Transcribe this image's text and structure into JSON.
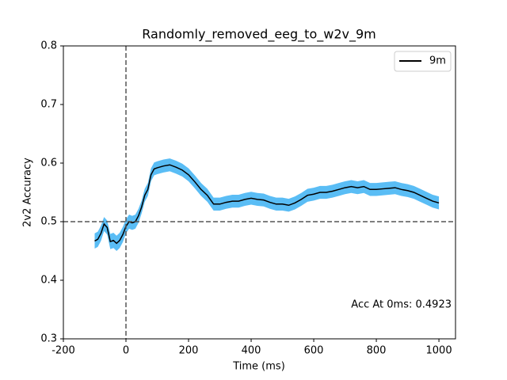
{
  "chart_data": {
    "type": "line",
    "title": "Randomly_removed_eeg_to_w2v_9m",
    "x_label": "Time (ms)",
    "y_label": "2v2 Accuracy",
    "x": [
      -100,
      -90,
      -80,
      -70,
      -60,
      -50,
      -40,
      -30,
      -20,
      -10,
      0,
      10,
      20,
      30,
      40,
      50,
      60,
      70,
      80,
      90,
      100,
      120,
      140,
      160,
      180,
      200,
      220,
      240,
      260,
      280,
      300,
      320,
      340,
      360,
      380,
      400,
      420,
      440,
      460,
      480,
      500,
      520,
      540,
      560,
      580,
      600,
      620,
      640,
      660,
      680,
      700,
      720,
      740,
      760,
      780,
      800,
      820,
      840,
      860,
      880,
      900,
      920,
      940,
      960,
      980,
      1000
    ],
    "series": [
      {
        "name": "9m",
        "color": "#000000",
        "band_color": "#5abdf5",
        "values": [
          0.467,
          0.47,
          0.48,
          0.496,
          0.49,
          0.466,
          0.468,
          0.463,
          0.468,
          0.478,
          0.492,
          0.5,
          0.498,
          0.5,
          0.51,
          0.525,
          0.545,
          0.555,
          0.58,
          0.59,
          0.592,
          0.595,
          0.597,
          0.593,
          0.588,
          0.58,
          0.568,
          0.555,
          0.545,
          0.53,
          0.53,
          0.533,
          0.535,
          0.535,
          0.538,
          0.54,
          0.538,
          0.537,
          0.533,
          0.53,
          0.53,
          0.528,
          0.532,
          0.538,
          0.545,
          0.547,
          0.55,
          0.55,
          0.552,
          0.555,
          0.558,
          0.56,
          0.558,
          0.56,
          0.555,
          0.555,
          0.556,
          0.557,
          0.558,
          0.555,
          0.553,
          0.55,
          0.545,
          0.54,
          0.535,
          0.532
        ],
        "errors": [
          0.013,
          0.013,
          0.013,
          0.012,
          0.012,
          0.013,
          0.013,
          0.013,
          0.013,
          0.013,
          0.012,
          0.012,
          0.012,
          0.012,
          0.012,
          0.011,
          0.011,
          0.011,
          0.011,
          0.011,
          0.011,
          0.011,
          0.011,
          0.011,
          0.011,
          0.011,
          0.011,
          0.011,
          0.011,
          0.011,
          0.011,
          0.011,
          0.011,
          0.011,
          0.011,
          0.011,
          0.011,
          0.011,
          0.011,
          0.011,
          0.011,
          0.011,
          0.011,
          0.011,
          0.011,
          0.011,
          0.011,
          0.011,
          0.011,
          0.011,
          0.011,
          0.011,
          0.011,
          0.011,
          0.011,
          0.011,
          0.011,
          0.011,
          0.011,
          0.011,
          0.011,
          0.011,
          0.011,
          0.011,
          0.011,
          0.011
        ]
      }
    ],
    "xlim": [
      -200,
      1053
    ],
    "ylim": [
      0.3,
      0.8
    ],
    "xticks": [
      -200,
      0,
      200,
      400,
      600,
      800,
      1000
    ],
    "yticks": [
      0.3,
      0.4,
      0.5,
      0.6,
      0.7,
      0.8
    ],
    "hline": 0.5,
    "vline": 0,
    "annotation": "Acc At 0ms: 0.4923",
    "legend": "upper right"
  }
}
